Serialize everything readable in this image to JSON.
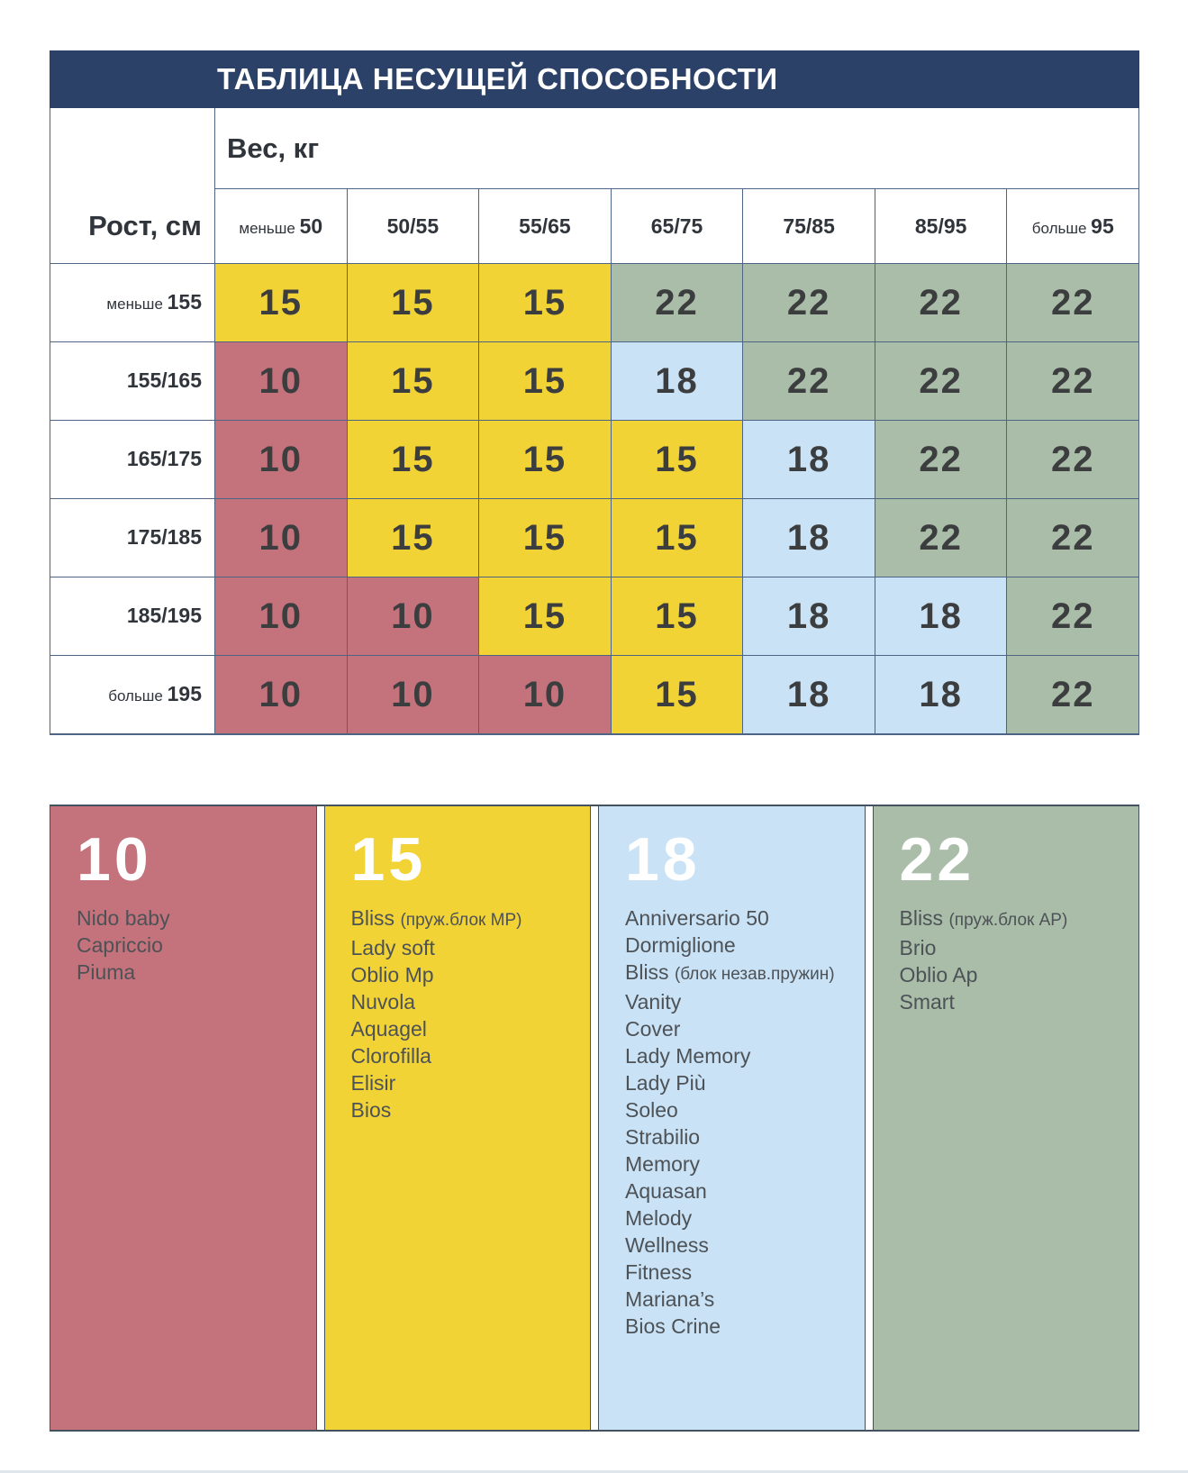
{
  "palette": {
    "navy": "#2b4167",
    "red": "#c4727b",
    "yellow": "#f2d335",
    "blue": "#c9e2f5",
    "green": "#a9bda8",
    "border": "#4d6485",
    "legend_border": "#44525f",
    "number_text": "#3c3d3f",
    "header_text": "#30353b",
    "body_text": "#4d5257",
    "bottom_strip": "#dfe6ec"
  },
  "value_colors": {
    "10": "red",
    "15": "yellow",
    "18": "blue",
    "22": "green"
  },
  "title": "ТАБЛИЦА НЕСУЩЕЙ СПОСОБНОСТИ",
  "table": {
    "weight_header": "Вес, кг",
    "height_header": "Рост, см",
    "columns": [
      {
        "prefix": "меньше",
        "value": "50"
      },
      {
        "prefix": "",
        "value": "50/55"
      },
      {
        "prefix": "",
        "value": "55/65"
      },
      {
        "prefix": "",
        "value": "65/75"
      },
      {
        "prefix": "",
        "value": "75/85"
      },
      {
        "prefix": "",
        "value": "85/95"
      },
      {
        "prefix": "больше",
        "value": "95"
      }
    ],
    "rows": [
      {
        "prefix": "меньше",
        "label": "155",
        "values": [
          15,
          15,
          15,
          22,
          22,
          22,
          22
        ]
      },
      {
        "prefix": "",
        "label": "155/165",
        "values": [
          10,
          15,
          15,
          18,
          22,
          22,
          22
        ]
      },
      {
        "prefix": "",
        "label": "165/175",
        "values": [
          10,
          15,
          15,
          15,
          18,
          22,
          22
        ]
      },
      {
        "prefix": "",
        "label": "175/185",
        "values": [
          10,
          15,
          15,
          15,
          18,
          22,
          22
        ]
      },
      {
        "prefix": "",
        "label": "185/195",
        "values": [
          10,
          10,
          15,
          15,
          18,
          18,
          22
        ]
      },
      {
        "prefix": "больше",
        "label": "195",
        "values": [
          10,
          10,
          10,
          15,
          18,
          18,
          22
        ]
      }
    ]
  },
  "legend": {
    "groups": [
      {
        "value": "10",
        "color": "red",
        "items": [
          {
            "name": "Nido baby"
          },
          {
            "name": "Capriccio"
          },
          {
            "name": "Piuma"
          }
        ]
      },
      {
        "value": "15",
        "color": "yellow",
        "items": [
          {
            "name": "Bliss",
            "note": "(пруж.блок MP)"
          },
          {
            "name": "Lady soft"
          },
          {
            "name": "Oblio Mp"
          },
          {
            "name": "Nuvola"
          },
          {
            "name": "Aquagel"
          },
          {
            "name": "Clorofilla"
          },
          {
            "name": "Elisir"
          },
          {
            "name": "Bios"
          }
        ]
      },
      {
        "value": "18",
        "color": "blue",
        "items": [
          {
            "name": "Anniversario 50"
          },
          {
            "name": "Dormiglione"
          },
          {
            "name": "Bliss",
            "note": "(блок незав.пружин)"
          },
          {
            "name": "Vanity"
          },
          {
            "name": "Cover"
          },
          {
            "name": "Lady Memory"
          },
          {
            "name": "Lady Più"
          },
          {
            "name": "Soleo"
          },
          {
            "name": "Strabilio"
          },
          {
            "name": "Memory"
          },
          {
            "name": "Aquasan"
          },
          {
            "name": "Melody"
          },
          {
            "name": "Wellness"
          },
          {
            "name": "Fitness"
          },
          {
            "name": "Mariana’s"
          },
          {
            "name": "Bios Crine"
          }
        ]
      },
      {
        "value": "22",
        "color": "green",
        "items": [
          {
            "name": "Bliss",
            "note": "(пруж.блок AP)"
          },
          {
            "name": "Brio"
          },
          {
            "name": "Oblio Ap"
          },
          {
            "name": "Smart"
          }
        ]
      }
    ]
  },
  "chart_data": {
    "type": "table",
    "title": "ТАБЛИЦА НЕСУЩЕЙ СПОСОБНОСТИ",
    "column_axis_label": "Вес, кг",
    "row_axis_label": "Рост, см",
    "columns": [
      "меньше 50",
      "50/55",
      "55/65",
      "65/75",
      "75/85",
      "85/95",
      "больше 95"
    ],
    "rows": [
      "меньше 155",
      "155/165",
      "165/175",
      "175/185",
      "185/195",
      "больше 195"
    ],
    "values": [
      [
        15,
        15,
        15,
        22,
        22,
        22,
        22
      ],
      [
        10,
        15,
        15,
        18,
        22,
        22,
        22
      ],
      [
        10,
        15,
        15,
        15,
        18,
        22,
        22
      ],
      [
        10,
        15,
        15,
        15,
        18,
        22,
        22
      ],
      [
        10,
        10,
        15,
        15,
        18,
        18,
        22
      ],
      [
        10,
        10,
        10,
        15,
        18,
        18,
        22
      ]
    ],
    "legend": {
      "10": [
        "Nido baby",
        "Capriccio",
        "Piuma"
      ],
      "15": [
        "Bliss (пруж.блок MP)",
        "Lady soft",
        "Oblio Mp",
        "Nuvola",
        "Aquagel",
        "Clorofilla",
        "Elisir",
        "Bios"
      ],
      "18": [
        "Anniversario 50",
        "Dormiglione",
        "Bliss (блок незав.пружин)",
        "Vanity",
        "Cover",
        "Lady Memory",
        "Lady Più",
        "Soleo",
        "Strabilio",
        "Memory",
        "Aquasan",
        "Melody",
        "Wellness",
        "Fitness",
        "Mariana’s",
        "Bios Crine"
      ],
      "22": [
        "Bliss (пруж.блок AP)",
        "Brio",
        "Oblio Ap",
        "Smart"
      ]
    }
  }
}
